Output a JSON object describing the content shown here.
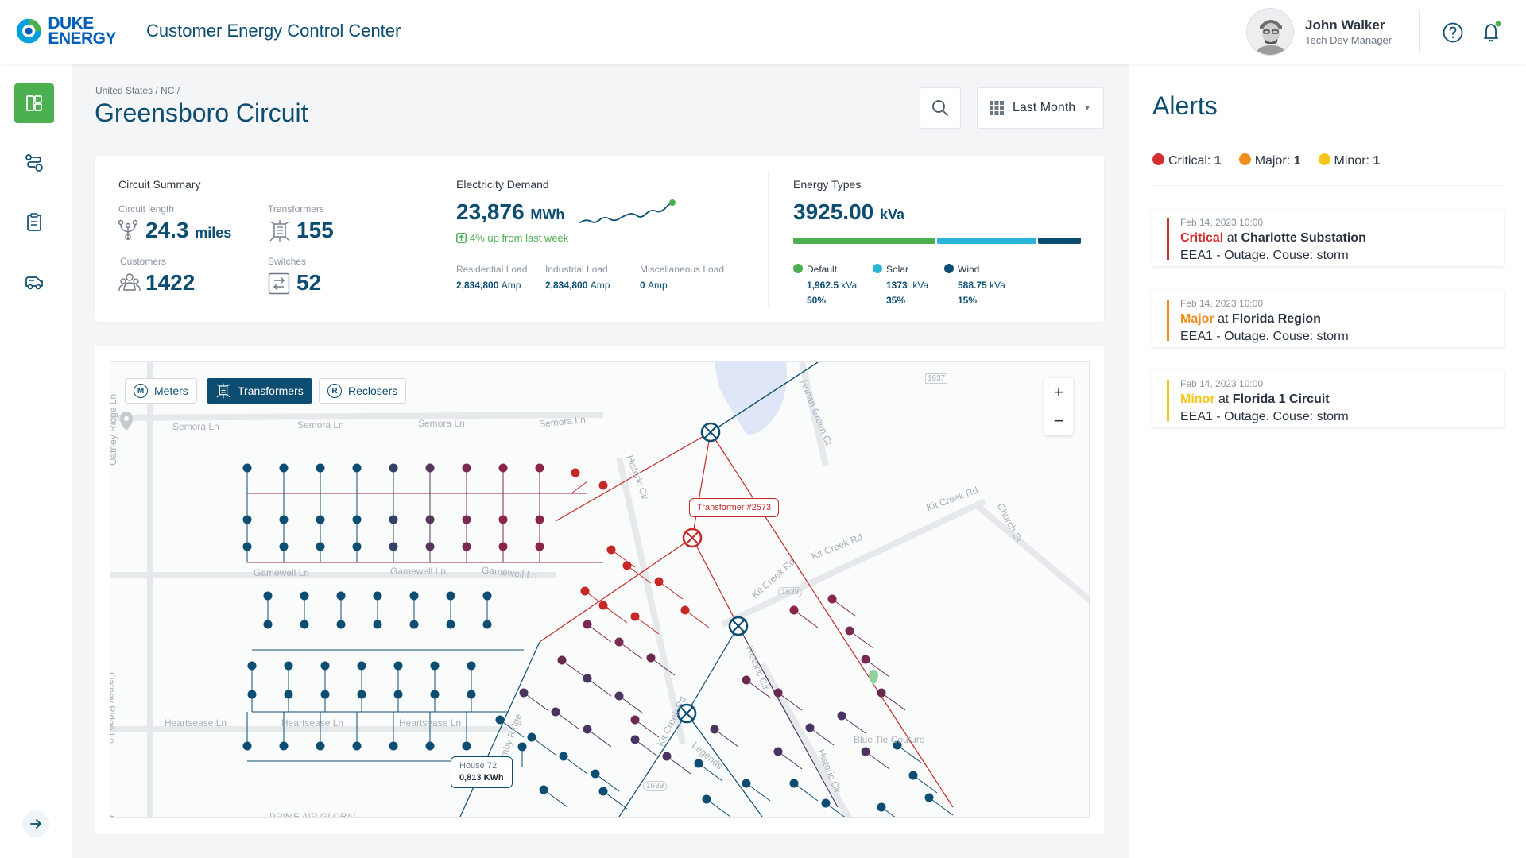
{
  "header": {
    "logo_line1": "DUKE",
    "logo_line2": "ENERGY",
    "app_title": "Customer Energy Control Center",
    "user_name": "John Walker",
    "user_role": "Tech Dev Manager",
    "icons": [
      "help-icon",
      "bell-icon"
    ]
  },
  "nav": {
    "items": [
      "dashboard-icon",
      "routes-icon",
      "clipboard-icon",
      "vehicle-icon"
    ],
    "expand_icon": "arrow-right-icon"
  },
  "page": {
    "breadcrumb": "United States / NC /",
    "title": "Greensboro Circuit",
    "period": "Last Month"
  },
  "summary": {
    "circuit": {
      "title": "Circuit Summary",
      "length_label": "Circuit length",
      "length_value": "24.3",
      "length_unit": "miles",
      "transformers_label": "Transformers",
      "transformers_value": "155",
      "customers_label": "Customers",
      "customers_value": "1422",
      "switches_label": "Switches",
      "switches_value": "52"
    },
    "demand": {
      "title": "Electricity Demand",
      "value": "23,876",
      "unit": "MWh",
      "trend": "4% up from last week",
      "residential_label": "Residential Load",
      "residential_value": "2,834,800",
      "industrial_label": "Industrial Load",
      "industrial_value": "2,834,800",
      "misc_label": "Miscellaneous Load",
      "misc_value": "0",
      "load_unit": "Amp"
    },
    "energy": {
      "title": "Energy Types",
      "value": "3925.00",
      "unit": "kVa",
      "types": [
        {
          "name": "Default",
          "value": "1,962.5",
          "unit": "kVa",
          "pct": "50%",
          "share": 0.5,
          "color": "#4caf50"
        },
        {
          "name": "Solar",
          "value": "1373",
          "unit": "kVa",
          "pct": "35%",
          "share": 0.35,
          "color": "#29b6d8"
        },
        {
          "name": "Wind",
          "value": "588.75",
          "unit": "kVa",
          "pct": "15%",
          "share": 0.15,
          "color": "#0d4d72"
        }
      ]
    }
  },
  "map": {
    "filters": [
      {
        "badge": "M",
        "label": "Meters",
        "active": false
      },
      {
        "badge": "",
        "label": "Transformers",
        "active": true
      },
      {
        "badge": "R",
        "label": "Reclosers",
        "active": false
      }
    ],
    "streets": {
      "semora": "Semora Ln",
      "gamewell": "Gamewell Ln",
      "heartsease": "Heartsease Ln",
      "oatney": "Oatney Ridge Ln",
      "kit_creek": "Kit Creek Rd",
      "church": "Church St",
      "historic": "Historic Cir",
      "legends": "Legends",
      "hamby": "Hamby Ridge",
      "hunan": "Hunan Green Ct",
      "blue_tie": "Blue Tie Couture",
      "prime_air": "PRIME AIR GLOBAL",
      "route_1637": "1637",
      "route_1639": "1639"
    },
    "transformer_callout": "Transformer #2573",
    "house_label": "House 72",
    "house_value": "0,813 KWh"
  },
  "alerts": {
    "title": "Alerts",
    "counts": [
      {
        "label": "Critical:",
        "count": "1",
        "color": "#d32f2f"
      },
      {
        "label": "Major:",
        "count": "1",
        "color": "#f28c1c"
      },
      {
        "label": "Minor:",
        "count": "1",
        "color": "#f5c518"
      }
    ],
    "items": [
      {
        "time": "Feb 14, 2023 10:00",
        "severity": "Critical",
        "at": "at",
        "location": "Charlotte Substation",
        "desc": "EEA1 - Outage. Couse: storm",
        "color": "#d32f2f"
      },
      {
        "time": "Feb 14, 2023 10:00",
        "severity": "Major",
        "at": "at",
        "location": "Florida Region",
        "desc": "EEA1 - Outage. Couse: storm",
        "color": "#f28c1c"
      },
      {
        "time": "Feb 14, 2023 10:00",
        "severity": "Minor",
        "at": "at",
        "location": "Florida 1 Circuit",
        "desc": "EEA1 - Outage. Couse: storm",
        "color": "#f5c518"
      }
    ]
  }
}
